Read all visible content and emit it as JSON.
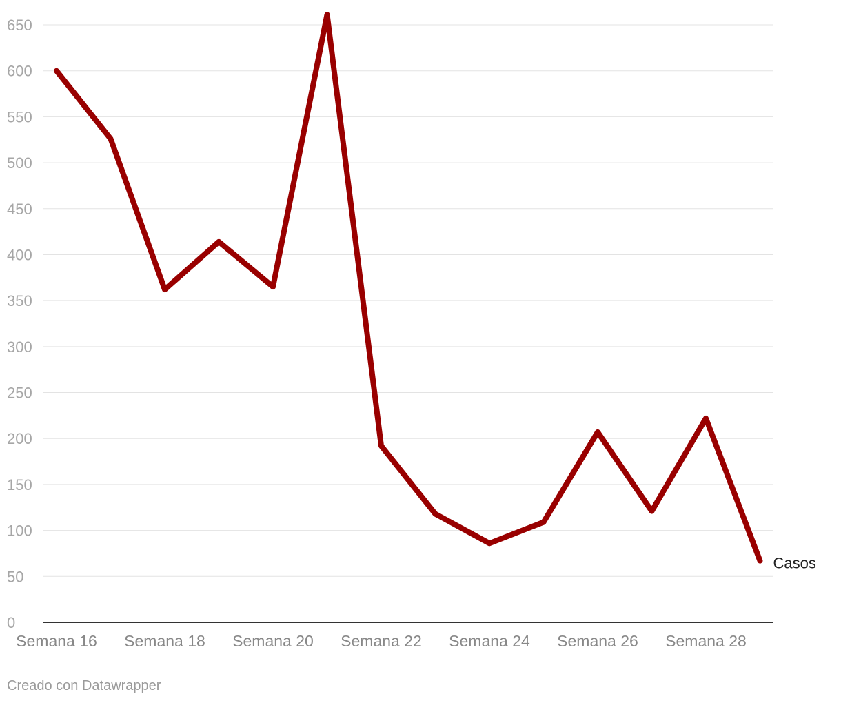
{
  "credit": "Creado con Datawrapper",
  "colors": {
    "series": "#990000",
    "grid": "#e3e3e3",
    "axis": "#333333"
  },
  "chart_data": {
    "type": "line",
    "title": "",
    "xlabel": "",
    "ylabel": "",
    "x": [
      "Semana 16",
      "Semana 17",
      "Semana 18",
      "Semana 19",
      "Semana 20",
      "Semana 21",
      "Semana 22",
      "Semana 23",
      "Semana 24",
      "Semana 25",
      "Semana 26",
      "Semana 27",
      "Semana 28",
      "Semana 29"
    ],
    "x_tick_labels": [
      "Semana 16",
      "Semana 18",
      "Semana 20",
      "Semana 22",
      "Semana 24",
      "Semana 26",
      "Semana 28"
    ],
    "series": [
      {
        "name": "Casos",
        "color": "#990000",
        "values": [
          600,
          526,
          362,
          414,
          365,
          661,
          192,
          118,
          86,
          109,
          207,
          121,
          222,
          67
        ]
      }
    ],
    "ylim": [
      0,
      650
    ],
    "y_ticks": [
      0,
      50,
      100,
      150,
      200,
      250,
      300,
      350,
      400,
      450,
      500,
      550,
      600,
      650
    ],
    "grid": true,
    "legend": "none"
  }
}
